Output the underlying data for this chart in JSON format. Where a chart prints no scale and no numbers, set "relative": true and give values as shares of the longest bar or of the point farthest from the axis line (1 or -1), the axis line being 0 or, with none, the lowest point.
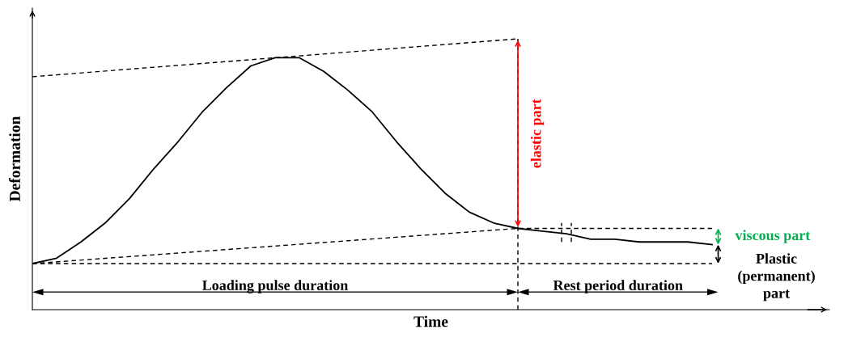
{
  "chart_data": {
    "type": "line",
    "relative": true,
    "xlabel": "Time",
    "ylabel": "Deformation",
    "categories": [
      null,
      null,
      null,
      null,
      null,
      null,
      null,
      null,
      null,
      null,
      null,
      null,
      null,
      null,
      null,
      null,
      null,
      null,
      null,
      null,
      null,
      null,
      null,
      null,
      null,
      null,
      null,
      null,
      null
    ],
    "series": [
      {
        "color": "#000000",
        "values": [
          0.17,
          0.19,
          0.25,
          0.32,
          0.41,
          0.52,
          0.62,
          0.73,
          0.82,
          0.9,
          0.93,
          0.93,
          0.88,
          0.81,
          0.73,
          0.62,
          0.52,
          0.43,
          0.36,
          0.32,
          0.3,
          0.29,
          0.28,
          0.26,
          0.26,
          0.25,
          0.25,
          0.25,
          0.24
        ]
      },
      {
        "color": "#000000",
        "line_style": "dashed",
        "values": [
          0.86,
          null,
          null,
          null,
          null,
          null,
          null,
          null,
          null,
          null,
          null,
          null,
          null,
          null,
          null,
          null,
          null,
          null,
          null,
          null,
          1.0,
          null,
          null,
          null,
          null,
          null,
          null,
          null,
          null
        ]
      },
      {
        "color": "#000000",
        "line_style": "dashed",
        "values": [
          0.17,
          null,
          null,
          null,
          null,
          null,
          null,
          null,
          null,
          null,
          null,
          null,
          null,
          null,
          null,
          null,
          null,
          null,
          null,
          null,
          0.3,
          null,
          null,
          null,
          null,
          null,
          null,
          null,
          0.3
        ]
      },
      {
        "color": "#000000",
        "line_style": "dashed",
        "values": [
          0.17,
          null,
          null,
          null,
          null,
          null,
          null,
          null,
          null,
          null,
          null,
          null,
          null,
          null,
          null,
          null,
          null,
          null,
          null,
          null,
          null,
          null,
          null,
          null,
          null,
          null,
          null,
          null,
          0.17
        ]
      }
    ],
    "annotations": [
      "elastic part",
      "viscous part",
      "Plastic\n(permanent)\npart",
      "Loading pulse duration",
      "Rest period duration"
    ]
  }
}
